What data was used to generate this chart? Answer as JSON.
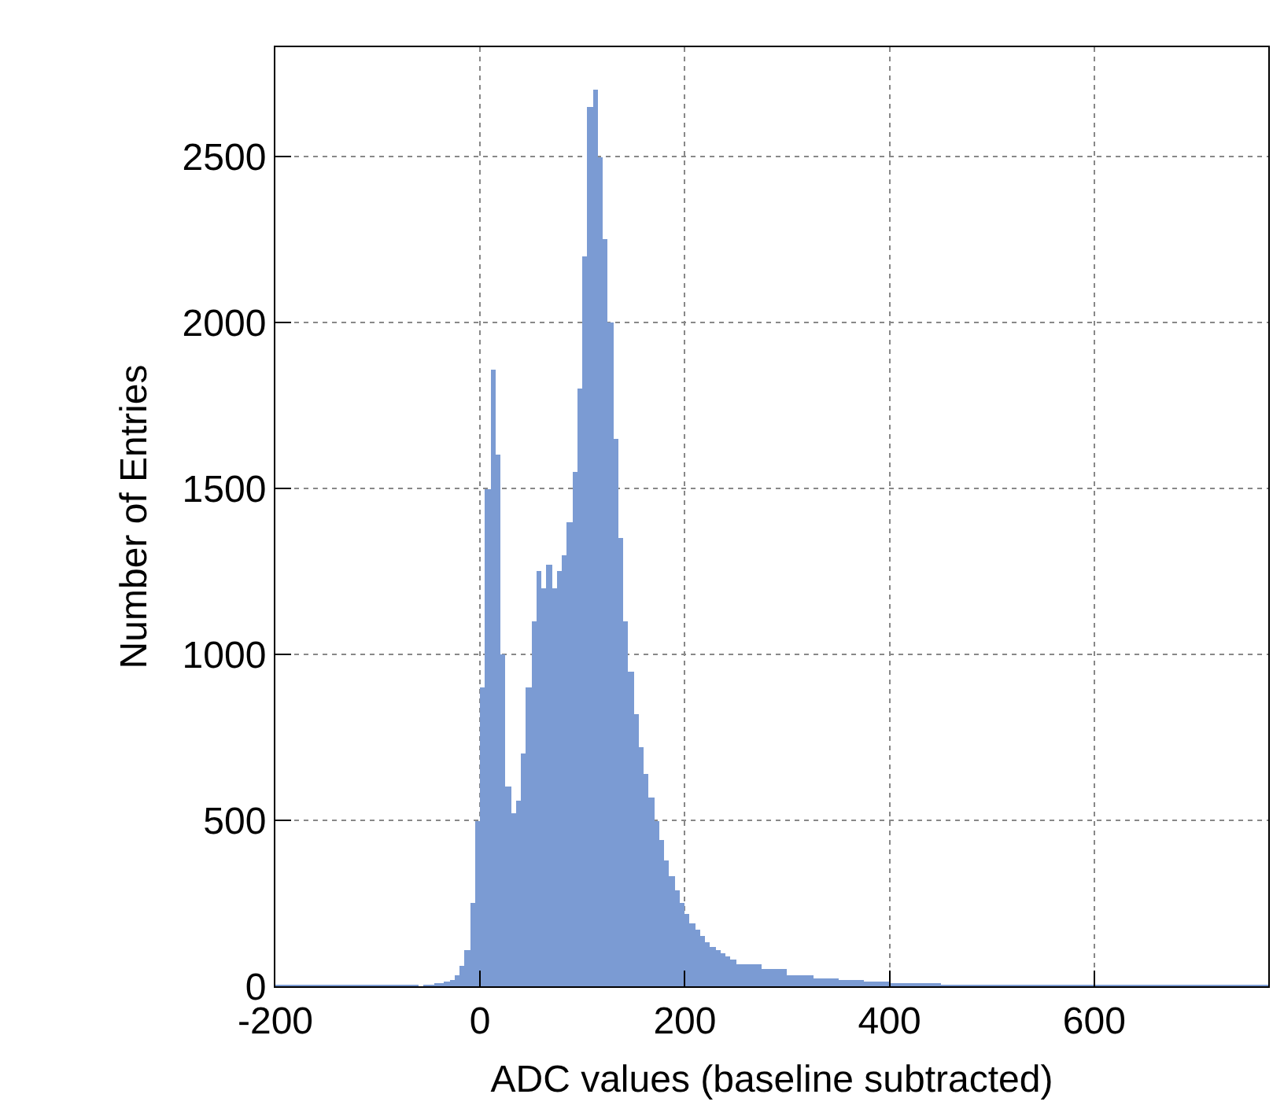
{
  "chart_data": {
    "type": "histogram",
    "xlabel": "ADC values (baseline subtracted)",
    "ylabel": "Number of Entries",
    "bins": [
      -200,
      -100,
      -60,
      -55,
      -50,
      -45,
      -40,
      -35,
      -30,
      -25,
      -20,
      -15,
      -10,
      -5,
      0,
      5,
      10,
      15,
      20,
      25,
      30,
      35,
      40,
      45,
      50,
      55,
      60,
      65,
      70,
      75,
      80,
      85,
      90,
      95,
      100,
      105,
      110,
      115,
      120,
      125,
      130,
      135,
      140,
      145,
      150,
      155,
      160,
      165,
      170,
      175,
      180,
      185,
      190,
      195,
      200,
      205,
      210,
      215,
      220,
      225,
      230,
      235,
      240,
      245,
      250,
      275,
      300,
      325,
      350,
      375,
      400,
      425,
      450,
      475,
      500,
      770
    ],
    "values": [
      1,
      1,
      0,
      2,
      3,
      5,
      8,
      12,
      20,
      35,
      60,
      110,
      250,
      500,
      900,
      1500,
      1860,
      1600,
      1000,
      600,
      520,
      560,
      700,
      900,
      1100,
      1250,
      1200,
      1270,
      1200,
      1250,
      1300,
      1400,
      1550,
      1800,
      2200,
      2650,
      2700,
      2500,
      2250,
      2000,
      1650,
      1350,
      1100,
      950,
      820,
      720,
      640,
      570,
      500,
      440,
      380,
      330,
      290,
      250,
      220,
      190,
      170,
      150,
      135,
      120,
      110,
      100,
      90,
      80,
      65,
      50,
      35,
      25,
      18,
      12,
      8,
      5,
      4,
      3,
      1
    ],
    "color": "#7b9bd3",
    "xlim": [
      -200,
      770
    ],
    "xticks": [
      -200,
      0,
      200,
      400,
      600
    ],
    "ylim": [
      0,
      2830
    ],
    "yticks": [
      0,
      500,
      1000,
      1500,
      2000,
      2500
    ],
    "grid": true
  }
}
